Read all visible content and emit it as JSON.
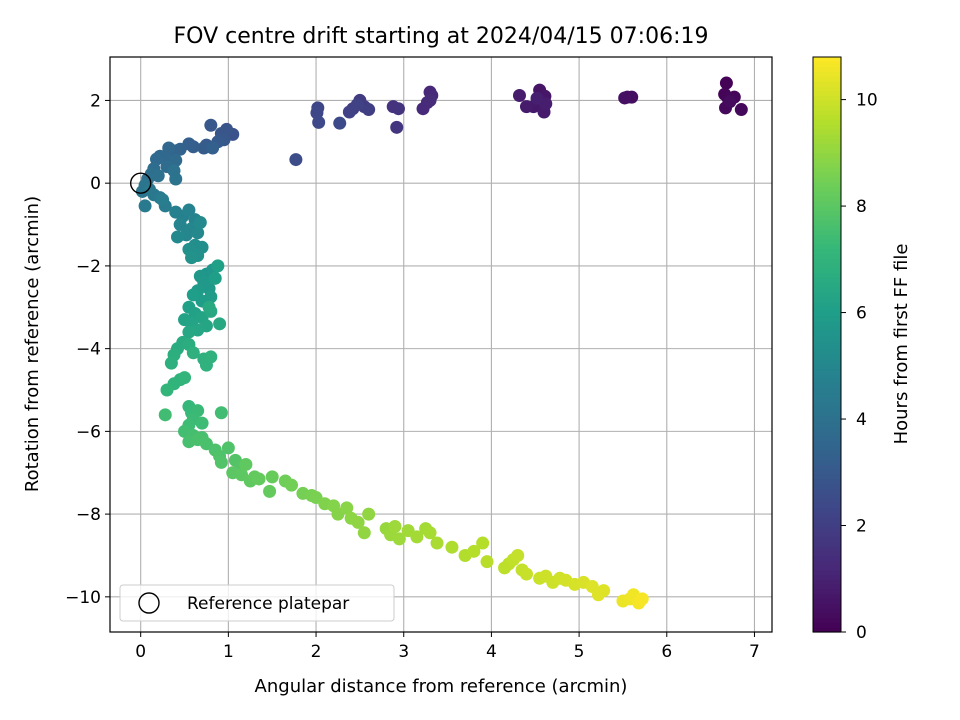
{
  "chart_data": {
    "type": "scatter",
    "title": "FOV centre drift starting at 2024/04/15 07:06:19",
    "xlabel": "Angular distance from reference (arcmin)",
    "ylabel": "Rotation from reference (arcmin)",
    "xlim": [
      -0.35,
      7.2
    ],
    "ylim": [
      -10.85,
      3.05
    ],
    "xticks": [
      0,
      1,
      2,
      3,
      4,
      5,
      6,
      7
    ],
    "yticks": [
      -10,
      -8,
      -6,
      -4,
      -2,
      0,
      2
    ],
    "grid": true,
    "legend": {
      "position": "lower-left",
      "label": "Reference platepar"
    },
    "reference_point": {
      "x": 0,
      "y": 0
    },
    "colorbar": {
      "label": "Hours from first FF file",
      "range": [
        0,
        10.8
      ],
      "ticks": [
        0,
        2,
        4,
        6,
        8,
        10
      ],
      "colormap": "viridis",
      "colors": [
        "#440154",
        "#482878",
        "#3e4989",
        "#31688e",
        "#26828e",
        "#1f9e89",
        "#35b779",
        "#6ece58",
        "#b5de2b",
        "#fde725"
      ]
    },
    "points_columns": [
      "x_arcmin",
      "y_arcmin",
      "hours"
    ],
    "points": [
      [
        6.68,
        2.42,
        0.05
      ],
      [
        6.66,
        2.15,
        0.1
      ],
      [
        6.7,
        2.05,
        0.15
      ],
      [
        6.77,
        2.08,
        0.18
      ],
      [
        6.67,
        1.82,
        0.22
      ],
      [
        6.85,
        1.78,
        0.26
      ],
      [
        6.72,
        1.97,
        0.3
      ],
      [
        5.55,
        2.08,
        0.38
      ],
      [
        5.6,
        2.08,
        0.42
      ],
      [
        5.52,
        2.06,
        0.46
      ],
      [
        4.55,
        2.25,
        0.6
      ],
      [
        4.61,
        2.1,
        0.64
      ],
      [
        4.57,
        2.0,
        0.68
      ],
      [
        4.48,
        1.85,
        0.72
      ],
      [
        4.6,
        1.72,
        0.76
      ],
      [
        4.4,
        1.85,
        0.8
      ],
      [
        4.32,
        2.12,
        0.84
      ],
      [
        4.62,
        1.92,
        0.88
      ],
      [
        4.52,
        2.05,
        0.92
      ],
      [
        3.3,
        2.2,
        1.2
      ],
      [
        3.32,
        2.12,
        1.24
      ],
      [
        3.27,
        1.95,
        1.28
      ],
      [
        3.22,
        1.8,
        1.32
      ],
      [
        3.3,
        2.0,
        1.36
      ],
      [
        2.88,
        1.85,
        1.6
      ],
      [
        2.94,
        1.8,
        1.64
      ],
      [
        2.92,
        1.35,
        1.68
      ],
      [
        2.5,
        2.0,
        1.9
      ],
      [
        2.55,
        1.85,
        1.95
      ],
      [
        2.42,
        1.8,
        2.0
      ],
      [
        2.6,
        1.78,
        2.05
      ],
      [
        2.38,
        1.72,
        2.1
      ],
      [
        2.47,
        1.9,
        2.15
      ],
      [
        2.02,
        1.82,
        2.3
      ],
      [
        2.01,
        1.7,
        2.35
      ],
      [
        2.03,
        1.47,
        2.4
      ],
      [
        2.27,
        1.45,
        2.45
      ],
      [
        1.77,
        0.57,
        2.55
      ],
      [
        1.05,
        1.18,
        2.8
      ],
      [
        0.98,
        1.3,
        2.85
      ],
      [
        0.92,
        1.2,
        2.9
      ],
      [
        0.95,
        1.05,
        2.95
      ],
      [
        0.8,
        1.4,
        3.0
      ],
      [
        0.88,
        1.0,
        3.05
      ],
      [
        0.75,
        0.92,
        3.1
      ],
      [
        0.72,
        0.85,
        3.15
      ],
      [
        0.6,
        0.88,
        3.2
      ],
      [
        0.55,
        0.95,
        3.25
      ],
      [
        0.82,
        0.85,
        3.3
      ],
      [
        0.45,
        0.82,
        3.4
      ],
      [
        0.4,
        0.78,
        3.45
      ],
      [
        0.35,
        0.7,
        3.5
      ],
      [
        0.32,
        0.85,
        3.55
      ],
      [
        0.28,
        0.6,
        3.6
      ],
      [
        0.22,
        0.65,
        3.65
      ],
      [
        0.18,
        0.58,
        3.7
      ],
      [
        0.4,
        0.55,
        3.75
      ],
      [
        0.3,
        0.4,
        3.8
      ],
      [
        0.15,
        0.35,
        3.85
      ],
      [
        0.12,
        0.22,
        3.9
      ],
      [
        0.08,
        0.1,
        3.95
      ],
      [
        0.2,
        0.18,
        4.0
      ],
      [
        0.38,
        0.3,
        4.05
      ],
      [
        0.4,
        0.1,
        4.1
      ],
      [
        0.05,
        -0.05,
        4.2
      ],
      [
        0.02,
        -0.2,
        4.25
      ],
      [
        0.1,
        -0.15,
        4.3
      ],
      [
        0.15,
        -0.28,
        4.35
      ],
      [
        0.22,
        -0.35,
        4.4
      ],
      [
        0.05,
        -0.55,
        4.45
      ],
      [
        0.28,
        -0.55,
        4.5
      ],
      [
        0.25,
        -0.4,
        4.55
      ],
      [
        0.4,
        -0.7,
        4.7
      ],
      [
        0.48,
        -0.8,
        4.75
      ],
      [
        0.55,
        -0.65,
        4.8
      ],
      [
        0.62,
        -0.88,
        4.85
      ],
      [
        0.45,
        -1.0,
        4.9
      ],
      [
        0.58,
        -1.1,
        4.95
      ],
      [
        0.52,
        -1.25,
        5.0
      ],
      [
        0.65,
        -1.2,
        5.05
      ],
      [
        0.42,
        -1.3,
        5.1
      ],
      [
        0.68,
        -0.95,
        5.15
      ],
      [
        0.62,
        -1.5,
        5.3
      ],
      [
        0.7,
        -1.55,
        5.35
      ],
      [
        0.55,
        -1.6,
        5.4
      ],
      [
        0.65,
        -1.75,
        5.45
      ],
      [
        0.58,
        -1.8,
        5.5
      ],
      [
        0.75,
        -2.2,
        5.6
      ],
      [
        0.82,
        -2.1,
        5.65
      ],
      [
        0.68,
        -2.25,
        5.7
      ],
      [
        0.72,
        -2.4,
        5.75
      ],
      [
        0.78,
        -2.55,
        5.8
      ],
      [
        0.65,
        -2.6,
        5.85
      ],
      [
        0.8,
        -2.75,
        5.9
      ],
      [
        0.7,
        -2.85,
        5.95
      ],
      [
        0.6,
        -2.7,
        6.0
      ],
      [
        0.85,
        -2.3,
        6.05
      ],
      [
        0.88,
        -2.0,
        6.1
      ],
      [
        0.55,
        -3.0,
        6.1
      ],
      [
        0.62,
        -3.15,
        6.15
      ],
      [
        0.5,
        -3.3,
        6.2
      ],
      [
        0.58,
        -3.4,
        6.25
      ],
      [
        0.7,
        -3.25,
        6.3
      ],
      [
        0.75,
        -3.45,
        6.35
      ],
      [
        0.65,
        -3.55,
        6.4
      ],
      [
        0.55,
        -3.6,
        6.45
      ],
      [
        0.8,
        -3.1,
        6.5
      ],
      [
        0.9,
        -3.4,
        6.5
      ],
      [
        0.78,
        -3.0,
        6.55
      ],
      [
        0.48,
        -3.85,
        6.6
      ],
      [
        0.42,
        -4.0,
        6.65
      ],
      [
        0.55,
        -3.9,
        6.7
      ],
      [
        0.38,
        -4.15,
        6.75
      ],
      [
        0.35,
        -4.35,
        6.8
      ],
      [
        0.6,
        -4.1,
        6.85
      ],
      [
        0.72,
        -4.25,
        6.85
      ],
      [
        0.75,
        -4.4,
        6.9
      ],
      [
        0.8,
        -4.2,
        6.9
      ],
      [
        0.45,
        -4.75,
        6.95
      ],
      [
        0.38,
        -4.85,
        7.0
      ],
      [
        0.5,
        -4.7,
        7.05
      ],
      [
        0.3,
        -5.0,
        7.1
      ],
      [
        0.55,
        -5.4,
        7.2
      ],
      [
        0.58,
        -5.55,
        7.25
      ],
      [
        0.65,
        -5.5,
        7.3
      ],
      [
        0.6,
        -5.7,
        7.35
      ],
      [
        0.7,
        -5.8,
        7.4
      ],
      [
        0.55,
        -5.85,
        7.4
      ],
      [
        0.28,
        -5.6,
        7.45
      ],
      [
        0.92,
        -5.55,
        7.45
      ],
      [
        0.5,
        -6.0,
        7.5
      ],
      [
        0.6,
        -6.1,
        7.55
      ],
      [
        0.7,
        -6.15,
        7.6
      ],
      [
        0.55,
        -6.25,
        7.6
      ],
      [
        0.75,
        -6.3,
        7.65
      ],
      [
        0.65,
        -6.2,
        7.65
      ],
      [
        0.85,
        -6.45,
        7.7
      ],
      [
        0.9,
        -6.6,
        7.75
      ],
      [
        1.0,
        -6.4,
        7.75
      ],
      [
        0.92,
        -6.75,
        7.8
      ],
      [
        1.08,
        -6.7,
        7.85
      ],
      [
        1.15,
        -6.85,
        7.9
      ],
      [
        1.05,
        -7.0,
        8.0
      ],
      [
        1.15,
        -7.05,
        8.05
      ],
      [
        1.2,
        -6.8,
        8.1
      ],
      [
        1.25,
        -7.2,
        8.1
      ],
      [
        1.3,
        -7.1,
        8.15
      ],
      [
        1.35,
        -7.15,
        8.2
      ],
      [
        1.47,
        -7.45,
        8.2
      ],
      [
        1.5,
        -7.1,
        8.25
      ],
      [
        1.65,
        -7.2,
        8.4
      ],
      [
        1.72,
        -7.3,
        8.45
      ],
      [
        1.85,
        -7.5,
        8.5
      ],
      [
        1.95,
        -7.55,
        8.55
      ],
      [
        2.0,
        -7.6,
        8.6
      ],
      [
        2.1,
        -7.75,
        8.7
      ],
      [
        2.2,
        -7.8,
        8.75
      ],
      [
        2.25,
        -8.0,
        8.8
      ],
      [
        2.35,
        -7.85,
        8.85
      ],
      [
        2.4,
        -8.1,
        8.9
      ],
      [
        2.48,
        -8.2,
        8.95
      ],
      [
        2.55,
        -8.45,
        9.0
      ],
      [
        2.6,
        -8.0,
        9.0
      ],
      [
        2.8,
        -8.35,
        9.1
      ],
      [
        2.85,
        -8.5,
        9.15
      ],
      [
        2.9,
        -8.3,
        9.2
      ],
      [
        2.95,
        -8.6,
        9.2
      ],
      [
        3.05,
        -8.4,
        9.25
      ],
      [
        3.15,
        -8.55,
        9.3
      ],
      [
        3.25,
        -8.35,
        9.3
      ],
      [
        3.3,
        -8.45,
        9.35
      ],
      [
        3.38,
        -8.7,
        9.4
      ],
      [
        3.55,
        -8.8,
        9.5
      ],
      [
        3.7,
        -9.0,
        9.55
      ],
      [
        3.8,
        -8.9,
        9.6
      ],
      [
        3.9,
        -8.7,
        9.6
      ],
      [
        3.95,
        -9.15,
        9.65
      ],
      [
        4.15,
        -9.3,
        9.7
      ],
      [
        4.2,
        -9.2,
        9.75
      ],
      [
        4.25,
        -9.1,
        9.8
      ],
      [
        4.3,
        -9.0,
        9.85
      ],
      [
        4.35,
        -9.35,
        9.85
      ],
      [
        4.4,
        -9.45,
        9.9
      ],
      [
        4.55,
        -9.55,
        9.95
      ],
      [
        4.62,
        -9.5,
        10.0
      ],
      [
        4.7,
        -9.65,
        10.0
      ],
      [
        4.78,
        -9.55,
        10.05
      ],
      [
        4.85,
        -9.6,
        10.1
      ],
      [
        4.95,
        -9.7,
        10.15
      ],
      [
        5.05,
        -9.65,
        10.2
      ],
      [
        5.15,
        -9.75,
        10.25
      ],
      [
        5.22,
        -9.95,
        10.3
      ],
      [
        5.28,
        -9.85,
        10.3
      ],
      [
        5.5,
        -10.1,
        10.5
      ],
      [
        5.58,
        -10.05,
        10.55
      ],
      [
        5.62,
        -9.95,
        10.6
      ],
      [
        5.68,
        -10.15,
        10.65
      ],
      [
        5.72,
        -10.05,
        10.7
      ]
    ]
  }
}
